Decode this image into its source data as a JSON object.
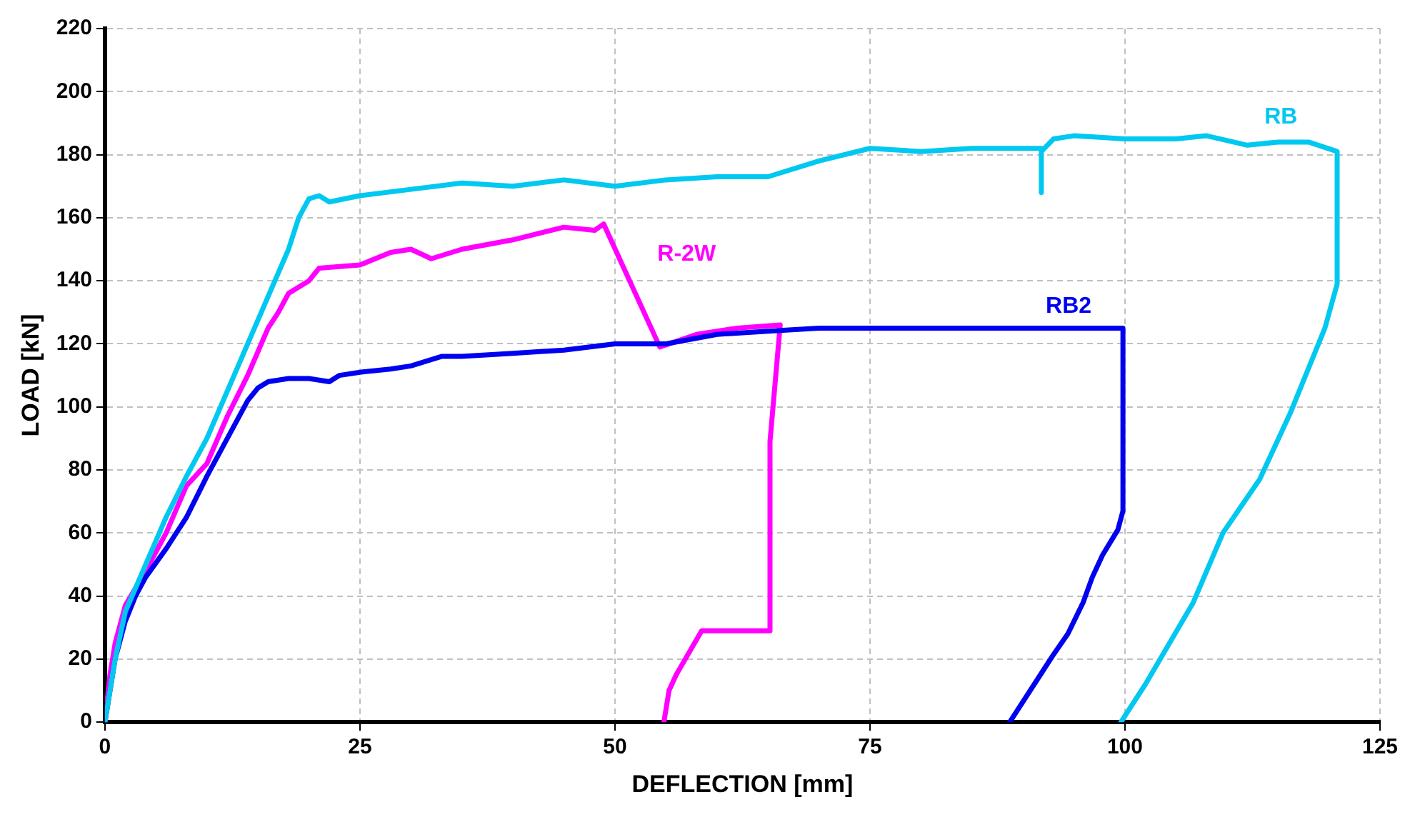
{
  "chart_data": {
    "type": "line",
    "xlabel": "DEFLECTION [mm]",
    "ylabel": "LOAD [kN]",
    "xlim": [
      0,
      125
    ],
    "xticks": [
      0,
      25,
      50,
      75,
      100,
      125
    ],
    "ylim": [
      0,
      220
    ],
    "yticks": [
      0,
      20,
      40,
      60,
      80,
      100,
      120,
      140,
      160,
      180,
      200,
      220
    ],
    "grid": true,
    "legend": false,
    "marker": "none",
    "line_style": "solid",
    "series": [
      {
        "name": "RB",
        "color": "#00c8f0",
        "x": [
          0,
          1,
          2,
          4,
          6,
          8,
          10,
          12,
          14,
          16,
          18,
          19,
          20,
          21,
          22,
          25,
          30,
          35,
          40,
          45,
          50,
          55,
          60,
          65,
          70,
          75,
          80,
          85,
          90,
          91.8,
          91.8,
          91.8,
          93,
          95,
          100,
          105,
          108,
          112,
          115,
          118,
          120.8,
          120.8,
          119.6,
          116.2,
          113.2,
          109.6,
          106.7,
          102,
          99.6
        ],
        "values": [
          0,
          20,
          35,
          50,
          65,
          78,
          90,
          105,
          120,
          135,
          150,
          160,
          166,
          167,
          165,
          167,
          169,
          171,
          170,
          172,
          170,
          172,
          173,
          173,
          178,
          182,
          181,
          182,
          182,
          182,
          168,
          181,
          185,
          186,
          185,
          185,
          186,
          183,
          184,
          184,
          181,
          139,
          125,
          98,
          77,
          60,
          38,
          12,
          0
        ]
      },
      {
        "name": "RB2",
        "color": "#0000f0",
        "x": [
          0,
          1,
          2,
          3,
          4,
          6,
          8,
          10,
          12,
          14,
          15,
          16,
          18,
          20,
          22,
          23,
          25,
          28,
          30,
          33,
          35,
          40,
          45,
          50,
          55,
          60,
          65,
          70,
          80,
          90,
          95,
          99.8,
          99.8,
          99.3,
          97.8,
          96.8,
          95.9,
          94.4,
          92.9,
          91.7,
          88.7
        ],
        "values": [
          0,
          20,
          32,
          40,
          46,
          55,
          65,
          78,
          90,
          102,
          106,
          108,
          109,
          109,
          108,
          110,
          111,
          112,
          113,
          116,
          116,
          117,
          118,
          120,
          120,
          123,
          124,
          125,
          125,
          125,
          125,
          125,
          67,
          61,
          53,
          46,
          38,
          28,
          21,
          15,
          0
        ]
      },
      {
        "name": "R-2W",
        "color": "#ff00ff",
        "x": [
          0,
          0.5,
          1,
          2,
          4,
          6,
          8,
          10,
          12,
          14,
          16,
          17,
          18,
          20,
          21,
          25,
          28,
          30,
          32,
          35,
          40,
          45,
          48,
          48.9,
          54.4,
          58,
          62,
          66.2,
          65.2,
          65.2,
          58.5,
          56,
          55.3,
          54.8
        ],
        "values": [
          0,
          15,
          25,
          37,
          48,
          60,
          75,
          82,
          97,
          110,
          125,
          130,
          136,
          140,
          144,
          145,
          149,
          150,
          147,
          150,
          153,
          157,
          156,
          158,
          119,
          123,
          125,
          126,
          89,
          29,
          29,
          15,
          10,
          0
        ]
      }
    ]
  }
}
